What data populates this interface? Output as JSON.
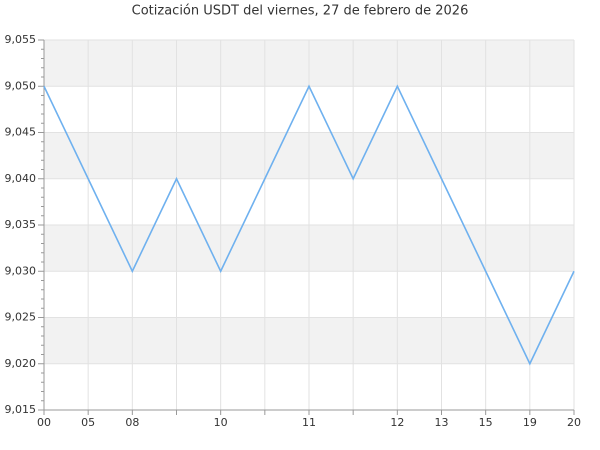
{
  "chart_data": {
    "type": "line",
    "title": "Cotización USDT del viernes, 27 de febrero de 2026",
    "categories": [
      "00",
      "05",
      "08",
      null,
      "10",
      null,
      "11",
      null,
      "12",
      "13",
      "15",
      "19",
      "20"
    ],
    "series": [
      {
        "name": "USDT",
        "color": "#6fb1ef",
        "values": [
          9.05,
          9.04,
          9.03,
          9.04,
          9.03,
          9.04,
          9.05,
          9.04,
          9.05,
          9.04,
          9.03,
          9.02,
          9.03
        ]
      }
    ],
    "ylim": [
      9.015,
      9.055
    ],
    "yticks": [
      {
        "value": 9.015,
        "label": "9,015"
      },
      {
        "value": 9.02,
        "label": "9,020"
      },
      {
        "value": 9.025,
        "label": "9,025"
      },
      {
        "value": 9.03,
        "label": "9,030"
      },
      {
        "value": 9.035,
        "label": "9,035"
      },
      {
        "value": 9.04,
        "label": "9,040"
      },
      {
        "value": 9.045,
        "label": "9,045"
      },
      {
        "value": 9.05,
        "label": "9,050"
      },
      {
        "value": 9.055,
        "label": "9,055"
      }
    ],
    "grid": true,
    "band_color": "#f2f2f2"
  }
}
